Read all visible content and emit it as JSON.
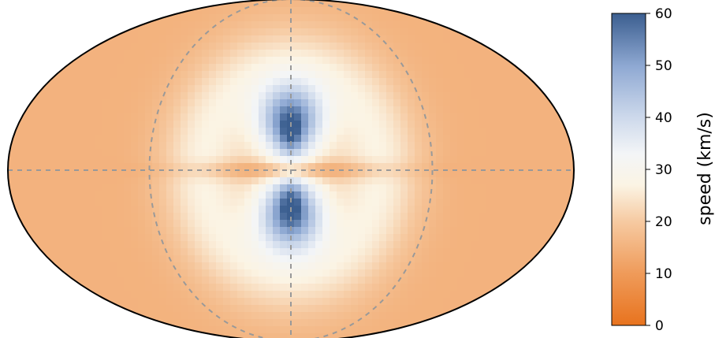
{
  "chart_data": {
    "type": "heatmap",
    "projection": "mollweide",
    "title": "",
    "map_data": {
      "description_of_values": "speed over sky map (estimated from color)",
      "background_speed": 15,
      "features": [
        {
          "kind": "ring",
          "peak_speed": 26,
          "note": "bright ring around center"
        },
        {
          "kind": "lobe",
          "position": "north of center",
          "peak_speed": 55
        },
        {
          "kind": "lobe",
          "position": "south of center",
          "peak_speed": 55
        },
        {
          "kind": "x-streaks",
          "speed": 18
        },
        {
          "kind": "equatorial-band",
          "speed": 15
        }
      ]
    },
    "graticule": {
      "style": "dashed",
      "color": "#999999",
      "meridians": true,
      "equator": true
    },
    "colorbar": {
      "label": "speed (km/s)",
      "range": [
        0,
        60
      ],
      "ticks": [
        "0",
        "10",
        "20",
        "30",
        "40",
        "50",
        "60"
      ],
      "colors": [
        "#e8731e",
        "#f3b98b",
        "#fbf4e4",
        "#e4ebf3",
        "#9cb4d8",
        "#3b5e8f"
      ]
    }
  }
}
